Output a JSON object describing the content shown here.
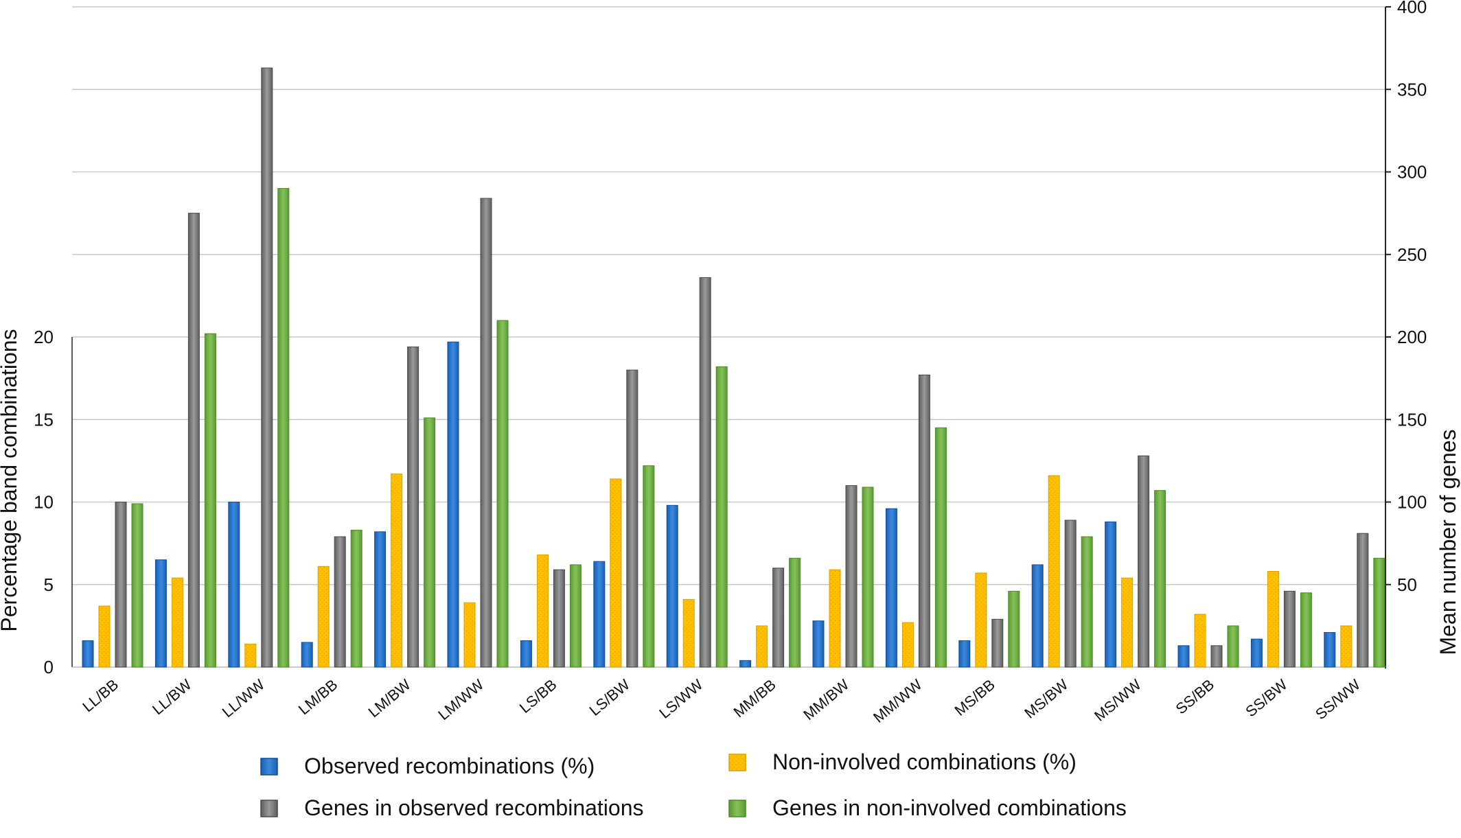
{
  "chart_data": {
    "type": "bar",
    "categories": [
      "LL/BB",
      "LL/BW",
      "LL/WW",
      "LM/BB",
      "LM/BW",
      "LM/WW",
      "LS/BB",
      "LS/BW",
      "LS/WW",
      "MM/BB",
      "MM/BW",
      "MM/WW",
      "MS/BB",
      "MS/BW",
      "MS/WW",
      "SS/BB",
      "SS/BW",
      "SS/WW"
    ],
    "series": [
      {
        "name": "Observed recombinations (%)",
        "axis": "left",
        "color": "#1f6fc5",
        "pattern": "solid",
        "values": [
          1.6,
          6.5,
          10.0,
          1.5,
          8.2,
          19.7,
          1.6,
          6.4,
          9.8,
          0.4,
          2.8,
          9.6,
          1.6,
          6.2,
          8.8,
          1.3,
          1.7,
          2.1
        ]
      },
      {
        "name": "Non-involved combinations (%)",
        "axis": "left",
        "color": "#ffc000",
        "pattern": "dotted",
        "values": [
          3.7,
          5.4,
          1.4,
          6.1,
          11.7,
          3.9,
          6.8,
          11.4,
          4.1,
          2.5,
          5.9,
          2.7,
          5.7,
          11.6,
          5.4,
          3.2,
          5.8,
          2.5
        ]
      },
      {
        "name": "Genes in observed recombinations",
        "axis": "right",
        "color": "#7f7f7f",
        "pattern": "solid",
        "values": [
          100,
          275,
          363,
          79,
          194,
          284,
          59,
          180,
          236,
          60,
          110,
          177,
          29,
          89,
          128,
          13,
          46,
          81
        ]
      },
      {
        "name": "Genes in non-involved combinations",
        "axis": "right",
        "color": "#70ad47",
        "pattern": "solid",
        "values": [
          99,
          202,
          290,
          83,
          151,
          210,
          62,
          122,
          182,
          66,
          109,
          145,
          46,
          79,
          107,
          25,
          45,
          66
        ]
      }
    ],
    "y_left": {
      "label": "Percentage band combinations",
      "ticks": [
        0,
        5,
        10,
        15,
        20
      ],
      "ylim": [
        0,
        20
      ]
    },
    "y_right": {
      "label": "Mean number of genes",
      "ticks": [
        50,
        100,
        150,
        200,
        250,
        300,
        350,
        400
      ],
      "ylim": [
        0,
        400
      ]
    },
    "grid": true,
    "legend_position": "bottom"
  }
}
